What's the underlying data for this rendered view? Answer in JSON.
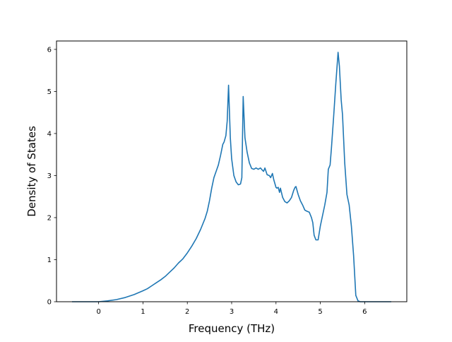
{
  "chart_data": {
    "type": "line",
    "title": "",
    "xlabel": "Frequency (THz)",
    "ylabel": "Density of States",
    "xlim": [
      -0.95,
      6.95
    ],
    "ylim": [
      0,
      6.2
    ],
    "xticks": [
      0,
      1,
      2,
      3,
      4,
      5,
      6
    ],
    "yticks": [
      0,
      1,
      2,
      3,
      4,
      5,
      6
    ],
    "xtick_labels": [
      "0",
      "1",
      "2",
      "3",
      "4",
      "5",
      "6"
    ],
    "ytick_labels": [
      "0",
      "1",
      "2",
      "3",
      "4",
      "5",
      "6"
    ],
    "grid": false,
    "legend": "none",
    "series": [
      {
        "color": "#1f77b4",
        "x": [
          -0.6,
          -0.2,
          0.0,
          0.2,
          0.4,
          0.6,
          0.8,
          1.0,
          1.1,
          1.2,
          1.3,
          1.4,
          1.5,
          1.6,
          1.7,
          1.8,
          1.9,
          2.0,
          2.1,
          2.2,
          2.3,
          2.4,
          2.45,
          2.5,
          2.55,
          2.6,
          2.65,
          2.7,
          2.75,
          2.8,
          2.83,
          2.87,
          2.9,
          2.93,
          2.97,
          3.0,
          3.05,
          3.1,
          3.15,
          3.2,
          3.23,
          3.26,
          3.3,
          3.35,
          3.4,
          3.45,
          3.5,
          3.55,
          3.6,
          3.65,
          3.7,
          3.72,
          3.75,
          3.8,
          3.85,
          3.88,
          3.92,
          3.95,
          4.0,
          4.02,
          4.05,
          4.08,
          4.1,
          4.15,
          4.2,
          4.25,
          4.3,
          4.35,
          4.4,
          4.43,
          4.45,
          4.5,
          4.55,
          4.6,
          4.65,
          4.7,
          4.75,
          4.8,
          4.83,
          4.86,
          4.9,
          4.95,
          5.0,
          5.05,
          5.1,
          5.15,
          5.18,
          5.22,
          5.25,
          5.3,
          5.35,
          5.4,
          5.43,
          5.47,
          5.5,
          5.55,
          5.6,
          5.65,
          5.7,
          5.75,
          5.8,
          5.85,
          5.9,
          5.95,
          6.0,
          6.1,
          6.3,
          6.6
        ],
        "y": [
          0.0,
          0.0,
          0.0,
          0.02,
          0.05,
          0.1,
          0.17,
          0.26,
          0.31,
          0.38,
          0.45,
          0.52,
          0.6,
          0.7,
          0.8,
          0.92,
          1.02,
          1.16,
          1.32,
          1.5,
          1.72,
          1.98,
          2.15,
          2.4,
          2.7,
          2.95,
          3.1,
          3.25,
          3.48,
          3.74,
          3.8,
          3.95,
          4.3,
          5.15,
          3.9,
          3.4,
          3.0,
          2.85,
          2.78,
          2.8,
          2.95,
          4.88,
          3.9,
          3.55,
          3.3,
          3.17,
          3.15,
          3.18,
          3.15,
          3.18,
          3.12,
          3.1,
          3.18,
          3.02,
          3.0,
          2.95,
          3.05,
          2.9,
          2.72,
          2.7,
          2.72,
          2.6,
          2.7,
          2.48,
          2.38,
          2.35,
          2.4,
          2.48,
          2.65,
          2.72,
          2.74,
          2.55,
          2.4,
          2.3,
          2.18,
          2.15,
          2.13,
          2.0,
          1.88,
          1.58,
          1.47,
          1.47,
          1.8,
          2.05,
          2.3,
          2.6,
          3.15,
          3.25,
          3.65,
          4.4,
          5.2,
          5.93,
          5.6,
          4.8,
          4.45,
          3.3,
          2.55,
          2.3,
          1.8,
          1.1,
          0.15,
          0.02,
          0.0,
          0.0,
          0.0,
          0.0,
          0.0,
          0.0
        ]
      }
    ]
  }
}
